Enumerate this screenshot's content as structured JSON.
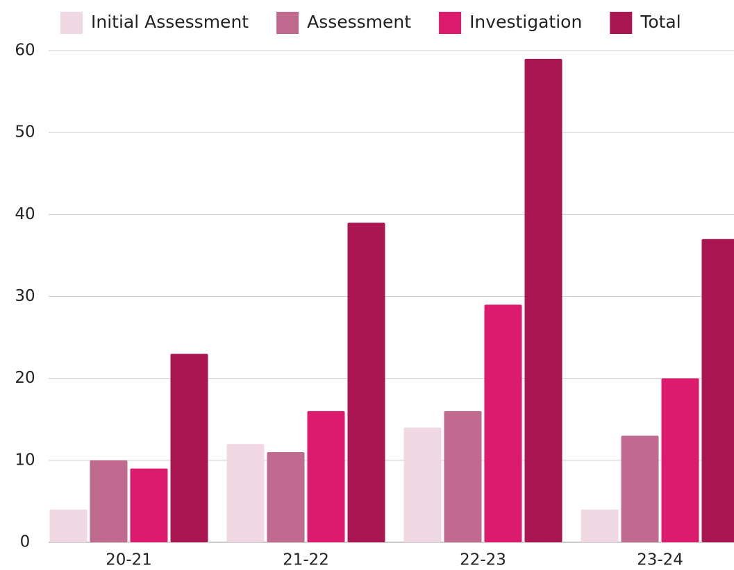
{
  "chart_data": {
    "type": "bar",
    "categories": [
      "20-21",
      "21-22",
      "22-23",
      "23-24"
    ],
    "series": [
      {
        "name": "Initial Assessment",
        "color": "#f0d9e3",
        "values": [
          4,
          12,
          14,
          4
        ]
      },
      {
        "name": "Assessment",
        "color": "#bf6a8e",
        "values": [
          10,
          11,
          16,
          13
        ]
      },
      {
        "name": "Investigation",
        "color": "#dc1a6e",
        "values": [
          9,
          16,
          29,
          20
        ]
      },
      {
        "name": "Total",
        "color": "#a91652",
        "values": [
          23,
          39,
          59,
          37
        ]
      }
    ],
    "ylim": [
      0,
      60
    ],
    "yticks": [
      0,
      10,
      20,
      30,
      40,
      50,
      60
    ],
    "grid": true,
    "legend": "top"
  }
}
